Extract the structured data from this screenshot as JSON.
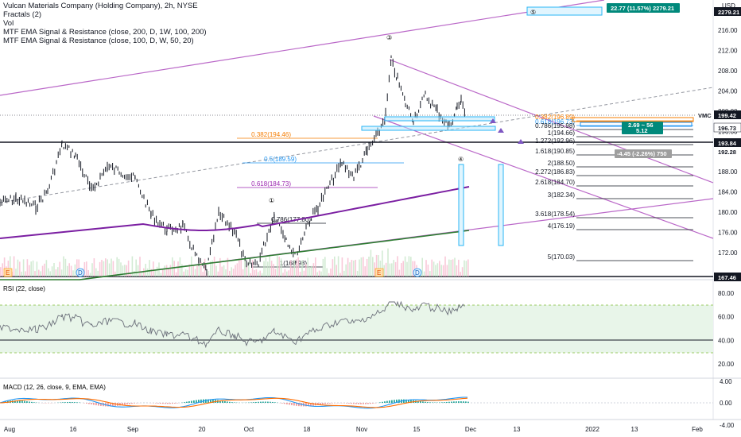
{
  "legend": {
    "title": "Vulcan Materials Company (Holding Company), 2h, NYSE",
    "fractals": "Fractals (2)",
    "vol": "Vol",
    "ema1": "MTF EMA Signal & Resistance (close, 200, D, 1W, 100, 200)",
    "ema2": "MTF EMA Signal & Resistance (close, 100, D, W, 50, 20)"
  },
  "currency": "USD",
  "price_axis": {
    "ticks": [
      "216.00",
      "212.00",
      "208.00",
      "204.00",
      "200.00",
      "196.00",
      "192.00",
      "188.00",
      "184.00",
      "180.00",
      "176.00",
      "172.00"
    ],
    "last_price": "199.42",
    "symbol": "VMC",
    "tag_196": "196.73",
    "tag_193": "193.84",
    "tag_192": "192.28",
    "tag_167": "167.46"
  },
  "fib_right": [
    {
      "label": "0.382(196.89)",
      "color": "#f57c00"
    },
    {
      "label": "0.618(196.73)",
      "color": "#2196f3"
    },
    {
      "label": "0.786(195.98)",
      "color": "#131722"
    },
    {
      "label": "1(194.66)",
      "color": "#131722"
    },
    {
      "label": "1.272(192.96)",
      "color": "#131722"
    },
    {
      "label": "1.618(190.85)",
      "color": "#131722"
    },
    {
      "label": "2(188.50)",
      "color": "#131722"
    },
    {
      "label": "2.272(186.83)",
      "color": "#131722"
    },
    {
      "label": "2.618(184.70)",
      "color": "#131722"
    },
    {
      "label": "3(182.34)",
      "color": "#131722"
    },
    {
      "label": "3.618(178.54)",
      "color": "#131722"
    },
    {
      "label": "4(176.19)",
      "color": "#131722"
    },
    {
      "label": "5(170.03)",
      "color": "#131722"
    }
  ],
  "fib_left": [
    {
      "label": "0.382(194.46)",
      "color": "#f57c00"
    },
    {
      "label": "0.5(189.59)",
      "color": "#2196f3"
    },
    {
      "label": "0.618(184.73)",
      "color": "#9c27b0"
    },
    {
      "label": "0.786(177.80)",
      "color": "#131722"
    },
    {
      "label": "1(168.98)",
      "color": "#131722"
    }
  ],
  "waves": [
    "①",
    "③",
    "④",
    "⑤"
  ],
  "markers": {
    "e": "E",
    "d": "D"
  },
  "target_label": "22.77 (11.57%) 2279.21",
  "target_price": "2279.21",
  "measure1": "2.69 ~ 56",
  "measure1b": "5.12",
  "measure2": "-4.45 (-2.26%) 750",
  "rsi": {
    "label": "RSI (22, close)",
    "ticks": [
      "80.00",
      "60.00",
      "40.00",
      "20.00"
    ],
    "upper": 70,
    "lower": 30
  },
  "macd": {
    "label": "MACD (12, 26, close, 9, EMA, EMA)",
    "ticks": [
      "4.00",
      "0.00",
      "-4.00"
    ]
  },
  "time_axis": [
    "Aug",
    "16",
    "Sep",
    "20",
    "Oct",
    "18",
    "Nov",
    "15",
    "Dec",
    "13",
    "2022",
    "13",
    "Feb"
  ],
  "colors": {
    "up": "#131722",
    "down": "#131722",
    "ema200": "#7b1fa2",
    "ema100": "#1b5e20",
    "channel": "#ba68c8",
    "rsi_band": "#e8f5e9",
    "last": "#131722"
  },
  "chart_data": {
    "type": "line",
    "title": "Vulcan Materials Company (Holding Company), 2h, NYSE",
    "x": [
      "Aug",
      "16",
      "Sep",
      "20",
      "Oct",
      "18",
      "Nov",
      "15",
      "Dec"
    ],
    "series": [
      {
        "name": "VMC",
        "values": [
          178,
          192,
          190,
          176,
          171,
          178,
          190,
          210,
          199.42
        ]
      }
    ],
    "ylim": [
      167,
      220
    ]
  }
}
